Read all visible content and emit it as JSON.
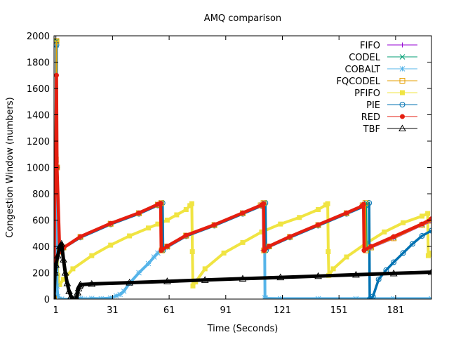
{
  "chart_data": {
    "type": "line",
    "title": "AMQ comparison",
    "xlabel": "Time (Seconds)",
    "ylabel": "Congestion Window (numbers)",
    "xlim": [
      0,
      200
    ],
    "ylim": [
      0,
      2000
    ],
    "xticks": [
      1,
      31,
      61,
      91,
      121,
      151,
      181
    ],
    "yticks": [
      0,
      200,
      400,
      600,
      800,
      1000,
      1200,
      1400,
      1600,
      1800,
      2000
    ],
    "grid": false,
    "legend_position": "top-right",
    "series": [
      {
        "name": "FIFO",
        "color": "#9400d3",
        "marker": "plus",
        "points": [
          [
            0,
            0
          ],
          [
            0.5,
            1050
          ],
          [
            1,
            1050
          ],
          [
            1.3,
            1950
          ],
          [
            1.6,
            1000
          ],
          [
            3,
            360
          ],
          [
            5,
            390
          ],
          [
            14,
            470
          ],
          [
            30,
            570
          ],
          [
            45,
            650
          ],
          [
            55,
            715
          ],
          [
            56.5,
            728
          ],
          [
            56.8,
            370
          ],
          [
            60,
            400
          ],
          [
            70,
            480
          ],
          [
            85,
            560
          ],
          [
            100,
            650
          ],
          [
            109,
            710
          ],
          [
            110.5,
            727
          ],
          [
            110.8,
            370
          ],
          [
            114,
            400
          ],
          [
            125,
            470
          ],
          [
            140,
            560
          ],
          [
            155,
            650
          ],
          [
            163,
            710
          ],
          [
            164.5,
            727
          ],
          [
            164.8,
            370
          ],
          [
            168,
            390
          ],
          [
            180,
            460
          ],
          [
            195,
            560
          ],
          [
            200,
            590
          ]
        ]
      },
      {
        "name": "CODEL",
        "color": "#009e73",
        "marker": "x",
        "points": [
          [
            0,
            0
          ],
          [
            0.5,
            1080
          ],
          [
            1,
            1080
          ],
          [
            1.3,
            1960
          ],
          [
            1.6,
            1000
          ],
          [
            3,
            360
          ],
          [
            5,
            395
          ],
          [
            14,
            475
          ],
          [
            30,
            575
          ],
          [
            45,
            655
          ],
          [
            55,
            720
          ],
          [
            57,
            732
          ],
          [
            57.3,
            370
          ],
          [
            60,
            400
          ],
          [
            70,
            485
          ],
          [
            85,
            565
          ],
          [
            100,
            655
          ],
          [
            110,
            715
          ],
          [
            111.5,
            732
          ],
          [
            111.8,
            370
          ],
          [
            114,
            400
          ],
          [
            125,
            475
          ],
          [
            140,
            565
          ],
          [
            155,
            655
          ],
          [
            164,
            715
          ],
          [
            165.5,
            732
          ],
          [
            165.8,
            370
          ],
          [
            168,
            395
          ],
          [
            180,
            465
          ],
          [
            195,
            565
          ],
          [
            200,
            600
          ]
        ]
      },
      {
        "name": "COBALT",
        "color": "#56b4e9",
        "marker": "star",
        "points": [
          [
            0,
            0
          ],
          [
            0.5,
            1050
          ],
          [
            1,
            1050
          ],
          [
            1.3,
            1930
          ],
          [
            1.6,
            100
          ],
          [
            2,
            20
          ],
          [
            4,
            0
          ],
          [
            12,
            0
          ],
          [
            14,
            5
          ],
          [
            16,
            0
          ],
          [
            20,
            5
          ],
          [
            25,
            3
          ],
          [
            30,
            8
          ],
          [
            33,
            25
          ],
          [
            35,
            35
          ],
          [
            37,
            60
          ],
          [
            40,
            120
          ],
          [
            45,
            200
          ],
          [
            50,
            270
          ],
          [
            53,
            320
          ],
          [
            55,
            350
          ],
          [
            57,
            370
          ],
          [
            60,
            395
          ],
          [
            70,
            480
          ],
          [
            85,
            565
          ],
          [
            100,
            655
          ],
          [
            110,
            715
          ],
          [
            111.5,
            728
          ],
          [
            111.8,
            10
          ],
          [
            112,
            5
          ],
          [
            120,
            3
          ],
          [
            140,
            3
          ],
          [
            160,
            3
          ],
          [
            180,
            3
          ],
          [
            200,
            3
          ]
        ]
      },
      {
        "name": "FQCODEL",
        "color": "#e69f00",
        "marker": "square",
        "points": [
          [
            0,
            0
          ],
          [
            0.5,
            1060
          ],
          [
            1,
            1060
          ],
          [
            1.3,
            1960
          ],
          [
            1.6,
            1000
          ],
          [
            3,
            360
          ],
          [
            5,
            392
          ],
          [
            14,
            472
          ],
          [
            30,
            572
          ],
          [
            45,
            652
          ],
          [
            55,
            716
          ],
          [
            56.8,
            729
          ],
          [
            57.1,
            370
          ],
          [
            60,
            400
          ],
          [
            70,
            482
          ],
          [
            85,
            562
          ],
          [
            100,
            652
          ],
          [
            109.5,
            712
          ],
          [
            111,
            729
          ],
          [
            111.3,
            370
          ],
          [
            114,
            400
          ],
          [
            125,
            472
          ],
          [
            140,
            562
          ],
          [
            155,
            652
          ],
          [
            163.5,
            712
          ],
          [
            165,
            729
          ],
          [
            165.3,
            370
          ],
          [
            168,
            392
          ],
          [
            180,
            462
          ],
          [
            195,
            562
          ],
          [
            200,
            595
          ]
        ]
      },
      {
        "name": "PFIFO",
        "color": "#f0e442",
        "marker": "filled-square",
        "points": [
          [
            0,
            0
          ],
          [
            0.5,
            1100
          ],
          [
            1,
            1100
          ],
          [
            1.3,
            1960
          ],
          [
            1.6,
            400
          ],
          [
            2,
            180
          ],
          [
            3,
            110
          ],
          [
            5,
            150
          ],
          [
            10,
            230
          ],
          [
            20,
            330
          ],
          [
            30,
            410
          ],
          [
            40,
            480
          ],
          [
            50,
            540
          ],
          [
            55,
            570
          ],
          [
            60,
            600
          ],
          [
            65,
            640
          ],
          [
            70,
            680
          ],
          [
            72,
            710
          ],
          [
            73,
            725
          ],
          [
            73.3,
            360
          ],
          [
            73.6,
            100
          ],
          [
            75,
            130
          ],
          [
            80,
            230
          ],
          [
            90,
            350
          ],
          [
            100,
            430
          ],
          [
            110,
            510
          ],
          [
            120,
            570
          ],
          [
            130,
            620
          ],
          [
            140,
            680
          ],
          [
            144,
            715
          ],
          [
            145,
            725
          ],
          [
            145.3,
            360
          ],
          [
            145.6,
            180
          ],
          [
            148,
            230
          ],
          [
            155,
            320
          ],
          [
            165,
            420
          ],
          [
            175,
            510
          ],
          [
            185,
            580
          ],
          [
            195,
            630
          ],
          [
            198,
            650
          ],
          [
            198.3,
            330
          ],
          [
            199,
            340
          ],
          [
            200,
            350
          ]
        ]
      },
      {
        "name": "PIE",
        "color": "#0072b2",
        "marker": "circle",
        "points": [
          [
            0,
            0
          ],
          [
            0.5,
            1040
          ],
          [
            1,
            1040
          ],
          [
            1.3,
            1930
          ],
          [
            1.6,
            1000
          ],
          [
            3,
            360
          ],
          [
            5,
            388
          ],
          [
            14,
            468
          ],
          [
            30,
            568
          ],
          [
            45,
            648
          ],
          [
            55,
            712
          ],
          [
            57.5,
            730
          ],
          [
            57.8,
            370
          ],
          [
            60,
            398
          ],
          [
            70,
            478
          ],
          [
            85,
            558
          ],
          [
            100,
            648
          ],
          [
            110,
            708
          ],
          [
            112,
            730
          ],
          [
            112.3,
            370
          ],
          [
            114,
            398
          ],
          [
            125,
            468
          ],
          [
            140,
            558
          ],
          [
            155,
            648
          ],
          [
            165,
            708
          ],
          [
            167,
            730
          ],
          [
            167.3,
            0
          ],
          [
            169,
            20
          ],
          [
            172,
            150
          ],
          [
            176,
            220
          ],
          [
            180,
            280
          ],
          [
            185,
            350
          ],
          [
            190,
            420
          ],
          [
            195,
            480
          ],
          [
            200,
            520
          ]
        ]
      },
      {
        "name": "RED",
        "color": "#e51e10",
        "marker": "filled-circle",
        "points": [
          [
            0,
            0
          ],
          [
            0.5,
            1080
          ],
          [
            1,
            1080
          ],
          [
            1.3,
            1700
          ],
          [
            1.6,
            1000
          ],
          [
            3,
            360
          ],
          [
            5,
            390
          ],
          [
            14,
            475
          ],
          [
            30,
            575
          ],
          [
            45,
            655
          ],
          [
            55,
            720
          ],
          [
            56.5,
            728
          ],
          [
            56.8,
            370
          ],
          [
            60,
            402
          ],
          [
            70,
            485
          ],
          [
            85,
            565
          ],
          [
            100,
            655
          ],
          [
            110,
            715
          ],
          [
            111,
            725
          ],
          [
            111.3,
            370
          ],
          [
            114,
            402
          ],
          [
            125,
            475
          ],
          [
            140,
            565
          ],
          [
            155,
            655
          ],
          [
            163,
            705
          ],
          [
            164,
            720
          ],
          [
            164.3,
            370
          ],
          [
            168,
            400
          ],
          [
            180,
            475
          ],
          [
            195,
            570
          ],
          [
            200,
            610
          ]
        ]
      },
      {
        "name": "TBF",
        "color": "#000000",
        "marker": "triangle",
        "points": [
          [
            0,
            0
          ],
          [
            0.5,
            200
          ],
          [
            1,
            260
          ],
          [
            2,
            330
          ],
          [
            3,
            400
          ],
          [
            4,
            420
          ],
          [
            5,
            300
          ],
          [
            6,
            200
          ],
          [
            7,
            120
          ],
          [
            8,
            60
          ],
          [
            9,
            20
          ],
          [
            10,
            0
          ],
          [
            11,
            0
          ],
          [
            12,
            5
          ],
          [
            12.5,
            50
          ],
          [
            13,
            80
          ],
          [
            13.5,
            100
          ],
          [
            14,
            110
          ],
          [
            20,
            115
          ],
          [
            40,
            125
          ],
          [
            60,
            135
          ],
          [
            80,
            145
          ],
          [
            100,
            155
          ],
          [
            120,
            165
          ],
          [
            140,
            175
          ],
          [
            160,
            185
          ],
          [
            180,
            195
          ],
          [
            200,
            205
          ]
        ]
      }
    ]
  }
}
